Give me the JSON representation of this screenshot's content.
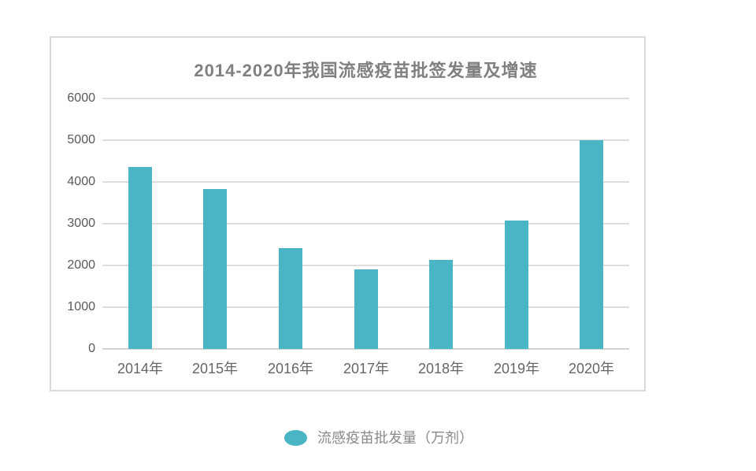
{
  "colors": {
    "bar": "#4ab5c4",
    "gridline": "#dddddd",
    "zero_axis_line": "#d3d3d3",
    "panel_border": "#d9d9d9",
    "title_text": "#808080",
    "y_tick_text": "#595959",
    "x_tick_text": "#666666",
    "legend_text": "#8a8a8a",
    "background": "#ffffff"
  },
  "chart_data": {
    "type": "bar",
    "title": "2014-2020年我国流感疫苗批签发量及增速",
    "categories": [
      "2014年",
      "2015年",
      "2016年",
      "2017年",
      "2018年",
      "2019年",
      "2020年"
    ],
    "series": [
      {
        "name": "流感疫苗批发量（万剂）",
        "values": [
          4350,
          3830,
          2410,
          1900,
          2130,
          3080,
          5000
        ]
      }
    ],
    "xlabel": "",
    "ylabel": "",
    "ylim": [
      0,
      6000
    ],
    "y_ticks": [
      0,
      1000,
      2000,
      3000,
      4000,
      5000,
      6000
    ],
    "grid": true,
    "legend_position": "bottom"
  }
}
